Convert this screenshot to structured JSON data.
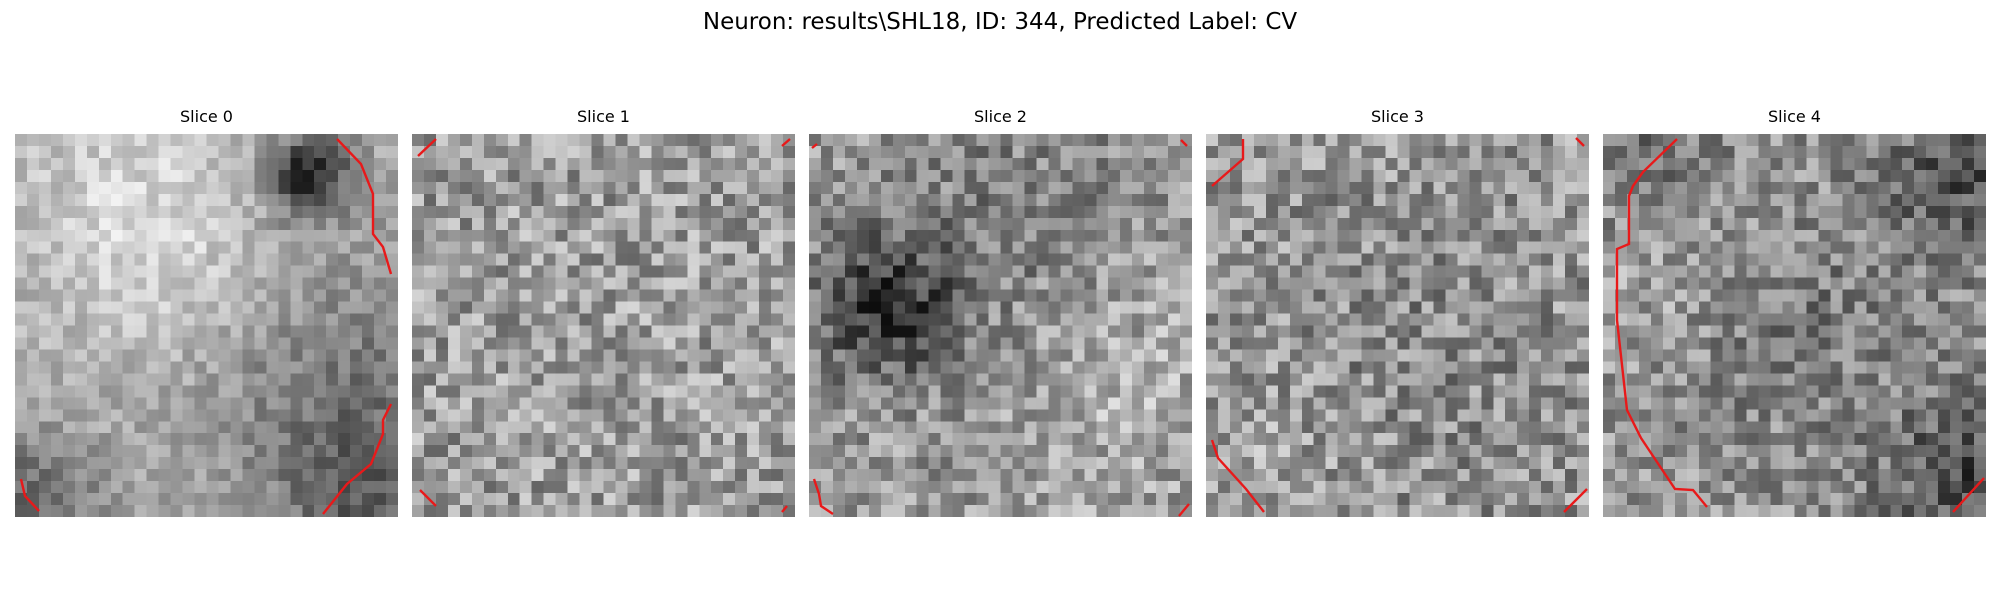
{
  "figure": {
    "title": "Neuron: results\\SHL18, ID: 344, Predicted Label: CV",
    "contour_color": "#e8191a"
  },
  "panels": [
    {
      "title": "Slice 0"
    },
    {
      "title": "Slice 1"
    },
    {
      "title": "Slice 2"
    },
    {
      "title": "Slice 3"
    },
    {
      "title": "Slice 4"
    }
  ]
}
